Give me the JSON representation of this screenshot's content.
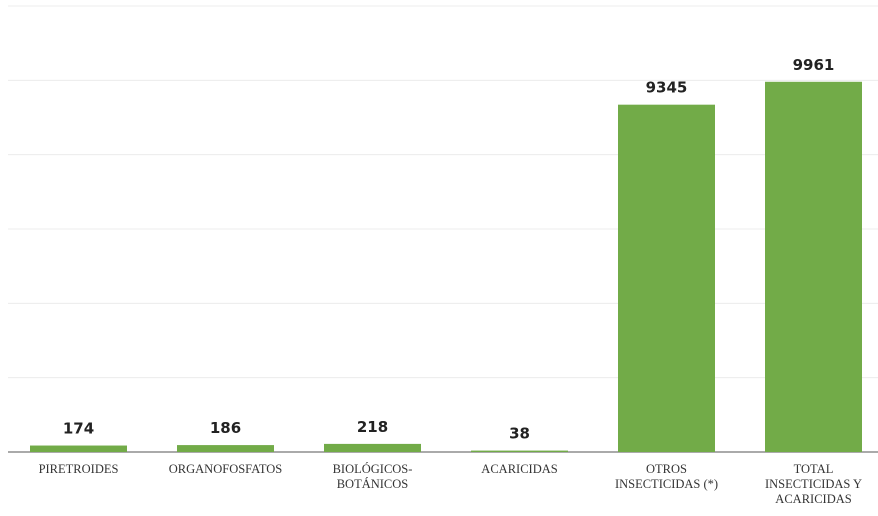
{
  "chart_data": {
    "type": "bar",
    "categories": [
      "PIRETROIDES",
      "ORGANOFOSFATOS",
      "BIOLÓGICOS-BOTÁNICOS",
      "ACARICIDAS",
      "OTROS INSECTICIDAS (*)",
      "TOTAL INSECTICIDAS Y ACARICIDAS"
    ],
    "values": [
      174,
      186,
      218,
      38,
      9345,
      9961
    ],
    "color": "#72ab48",
    "ylim": [
      0,
      12000
    ],
    "yticks": [
      0,
      2000,
      4000,
      6000,
      8000,
      10000,
      12000
    ],
    "grid": true
  }
}
